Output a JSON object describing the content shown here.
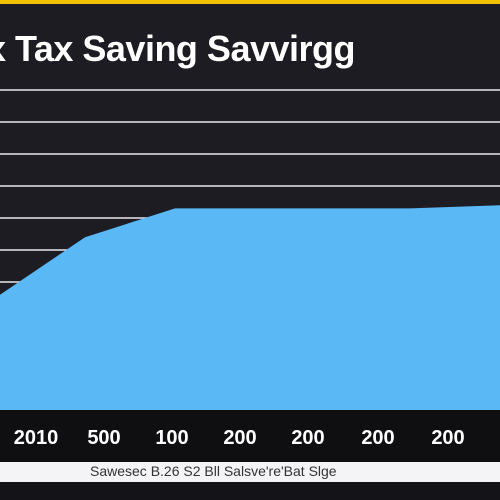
{
  "colors": {
    "background": "#1c1c22",
    "area_fill": "#5ab8f5",
    "gridline": "#e8e8ec",
    "accent": "#f2c200",
    "tick_text": "#ffffff"
  },
  "chart_data": {
    "type": "area",
    "title": "x Tax Saving Savvirgg",
    "xlabel": "",
    "ylabel": "",
    "categories": [
      "2010",
      "500",
      "100",
      "200",
      "200",
      "200",
      "200"
    ],
    "series": [
      {
        "values": [
          3.6,
          5.4,
          6.3,
          6.3,
          6.3,
          6.3,
          6.4
        ]
      }
    ],
    "ylim": [
      0,
      10
    ],
    "grid": true,
    "legend": "none",
    "footer_text": "Sawesec B.26 S2 Bll Salsve're'Bat Slge"
  }
}
